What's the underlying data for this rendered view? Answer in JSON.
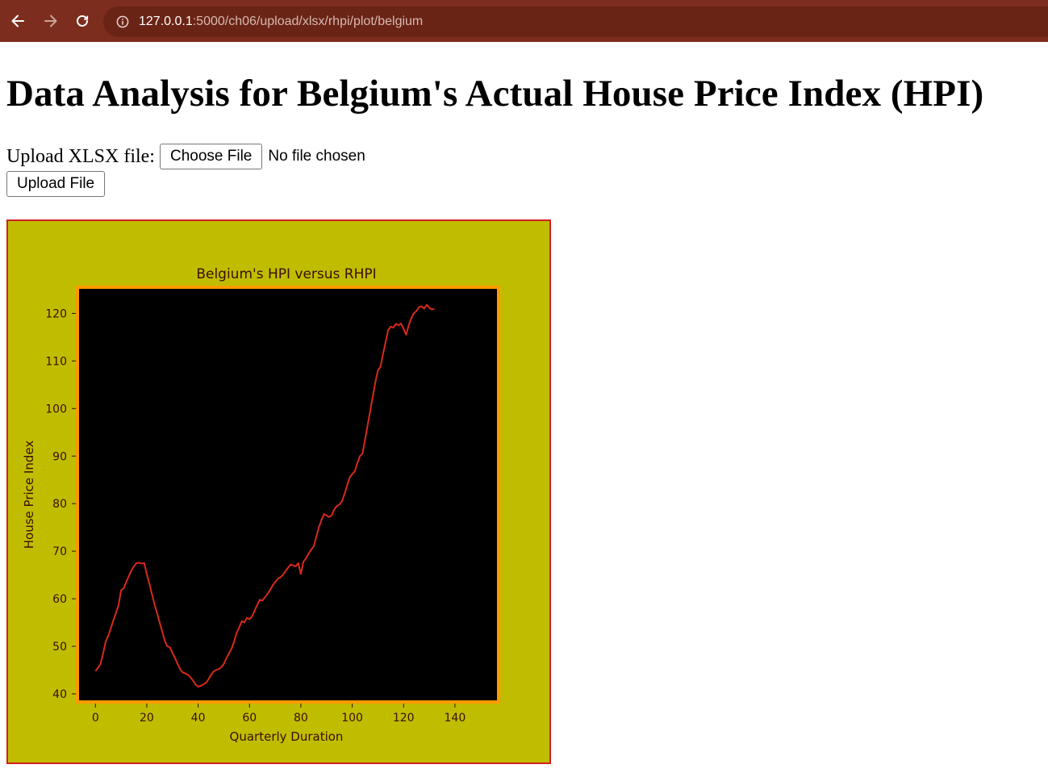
{
  "browser": {
    "url_host": "127.0.0.1",
    "url_path": ":5000/ch06/upload/xlsx/rhpi/plot/belgium"
  },
  "page": {
    "title": "Data Analysis for Belgium's Actual House Price Index (HPI)",
    "upload_label": "Upload XLSX file:",
    "choose_file_label": "Choose File",
    "file_status": "No file chosen",
    "upload_button_label": "Upload File"
  },
  "colors": {
    "figure_bg": "#c0bd00",
    "axes_bg": "#000000",
    "axes_border": "#ff9900",
    "line": "#d8291c",
    "frame_border": "#d11f1f"
  },
  "chart_data": {
    "type": "line",
    "title": "Belgium's HPI versus RHPI",
    "xlabel": "Quarterly Duration",
    "ylabel": "House Price Index",
    "xlim": [
      -7,
      157
    ],
    "ylim": [
      38.3,
      125.5
    ],
    "xticks": [
      0,
      20,
      40,
      60,
      80,
      100,
      120,
      140
    ],
    "yticks": [
      40,
      50,
      60,
      70,
      80,
      90,
      100,
      110,
      120
    ],
    "grid": false,
    "series": [
      {
        "points": [
          [
            0,
            44.8
          ],
          [
            1,
            45.5
          ],
          [
            2,
            46.3
          ],
          [
            3,
            48.5
          ],
          [
            4,
            51.0
          ],
          [
            5,
            52.2
          ],
          [
            6,
            53.8
          ],
          [
            7,
            55.5
          ],
          [
            8,
            57.0
          ],
          [
            9,
            58.6
          ],
          [
            10,
            61.8
          ],
          [
            11,
            62.2
          ],
          [
            12,
            63.5
          ],
          [
            13,
            64.8
          ],
          [
            14,
            65.9
          ],
          [
            15,
            66.8
          ],
          [
            16,
            67.5
          ],
          [
            17,
            67.6
          ],
          [
            18,
            67.4
          ],
          [
            19,
            67.5
          ],
          [
            20,
            65.2
          ],
          [
            21,
            63.2
          ],
          [
            22,
            61.0
          ],
          [
            23,
            58.9
          ],
          [
            24,
            57.0
          ],
          [
            25,
            55.0
          ],
          [
            26,
            53.2
          ],
          [
            27,
            51.2
          ],
          [
            28,
            50.0
          ],
          [
            29,
            49.8
          ],
          [
            30,
            48.6
          ],
          [
            31,
            47.5
          ],
          [
            32,
            46.3
          ],
          [
            33,
            45.2
          ],
          [
            34,
            44.5
          ],
          [
            35,
            44.3
          ],
          [
            36,
            44.0
          ],
          [
            37,
            43.5
          ],
          [
            38,
            42.8
          ],
          [
            39,
            42.0
          ],
          [
            40,
            41.5
          ],
          [
            41,
            41.7
          ],
          [
            42,
            42.0
          ],
          [
            43,
            42.3
          ],
          [
            44,
            43.0
          ],
          [
            45,
            44.0
          ],
          [
            46,
            44.7
          ],
          [
            47,
            45.0
          ],
          [
            48,
            45.2
          ],
          [
            49,
            45.6
          ],
          [
            50,
            46.3
          ],
          [
            51,
            47.5
          ],
          [
            52,
            48.5
          ],
          [
            53,
            49.5
          ],
          [
            54,
            51.0
          ],
          [
            55,
            52.8
          ],
          [
            56,
            54.0
          ],
          [
            57,
            55.3
          ],
          [
            58,
            55.0
          ],
          [
            59,
            56.0
          ],
          [
            60,
            55.7
          ],
          [
            61,
            56.3
          ],
          [
            62,
            57.5
          ],
          [
            63,
            58.7
          ],
          [
            64,
            59.8
          ],
          [
            65,
            59.6
          ],
          [
            66,
            60.3
          ],
          [
            67,
            61.0
          ],
          [
            68,
            61.8
          ],
          [
            69,
            62.8
          ],
          [
            70,
            63.5
          ],
          [
            71,
            64.2
          ],
          [
            72,
            64.5
          ],
          [
            73,
            65.0
          ],
          [
            74,
            65.8
          ],
          [
            75,
            66.5
          ],
          [
            76,
            67.2
          ],
          [
            77,
            67.0
          ],
          [
            78,
            66.8
          ],
          [
            79,
            67.5
          ],
          [
            80,
            65.2
          ],
          [
            81,
            67.8
          ],
          [
            82,
            68.5
          ],
          [
            83,
            69.5
          ],
          [
            84,
            70.3
          ],
          [
            85,
            71.0
          ],
          [
            86,
            73.0
          ],
          [
            87,
            75.0
          ],
          [
            88,
            76.5
          ],
          [
            89,
            77.8
          ],
          [
            90,
            77.5
          ],
          [
            91,
            77.2
          ],
          [
            92,
            77.5
          ],
          [
            93,
            78.8
          ],
          [
            94,
            79.5
          ],
          [
            95,
            79.8
          ],
          [
            96,
            80.5
          ],
          [
            97,
            82.0
          ],
          [
            98,
            83.8
          ],
          [
            99,
            85.5
          ],
          [
            100,
            86.2
          ],
          [
            101,
            86.8
          ],
          [
            102,
            88.5
          ],
          [
            103,
            90.0
          ],
          [
            104,
            90.5
          ],
          [
            105,
            93.5
          ],
          [
            106,
            96.5
          ],
          [
            107,
            99.5
          ],
          [
            108,
            102.5
          ],
          [
            109,
            105.5
          ],
          [
            110,
            108.0
          ],
          [
            111,
            108.8
          ],
          [
            112,
            111.5
          ],
          [
            113,
            114.0
          ],
          [
            114,
            116.5
          ],
          [
            115,
            117.2
          ],
          [
            116,
            117.0
          ],
          [
            117,
            117.8
          ],
          [
            118,
            117.5
          ],
          [
            119,
            117.9
          ],
          [
            120,
            116.8
          ],
          [
            121,
            115.5
          ],
          [
            122,
            117.5
          ],
          [
            123,
            119.0
          ],
          [
            124,
            120.0
          ],
          [
            125,
            120.5
          ],
          [
            126,
            121.3
          ],
          [
            127,
            121.5
          ],
          [
            128,
            121.0
          ],
          [
            129,
            121.8
          ],
          [
            130,
            121.2
          ],
          [
            131,
            120.8
          ],
          [
            132,
            121.0
          ]
        ]
      }
    ]
  }
}
